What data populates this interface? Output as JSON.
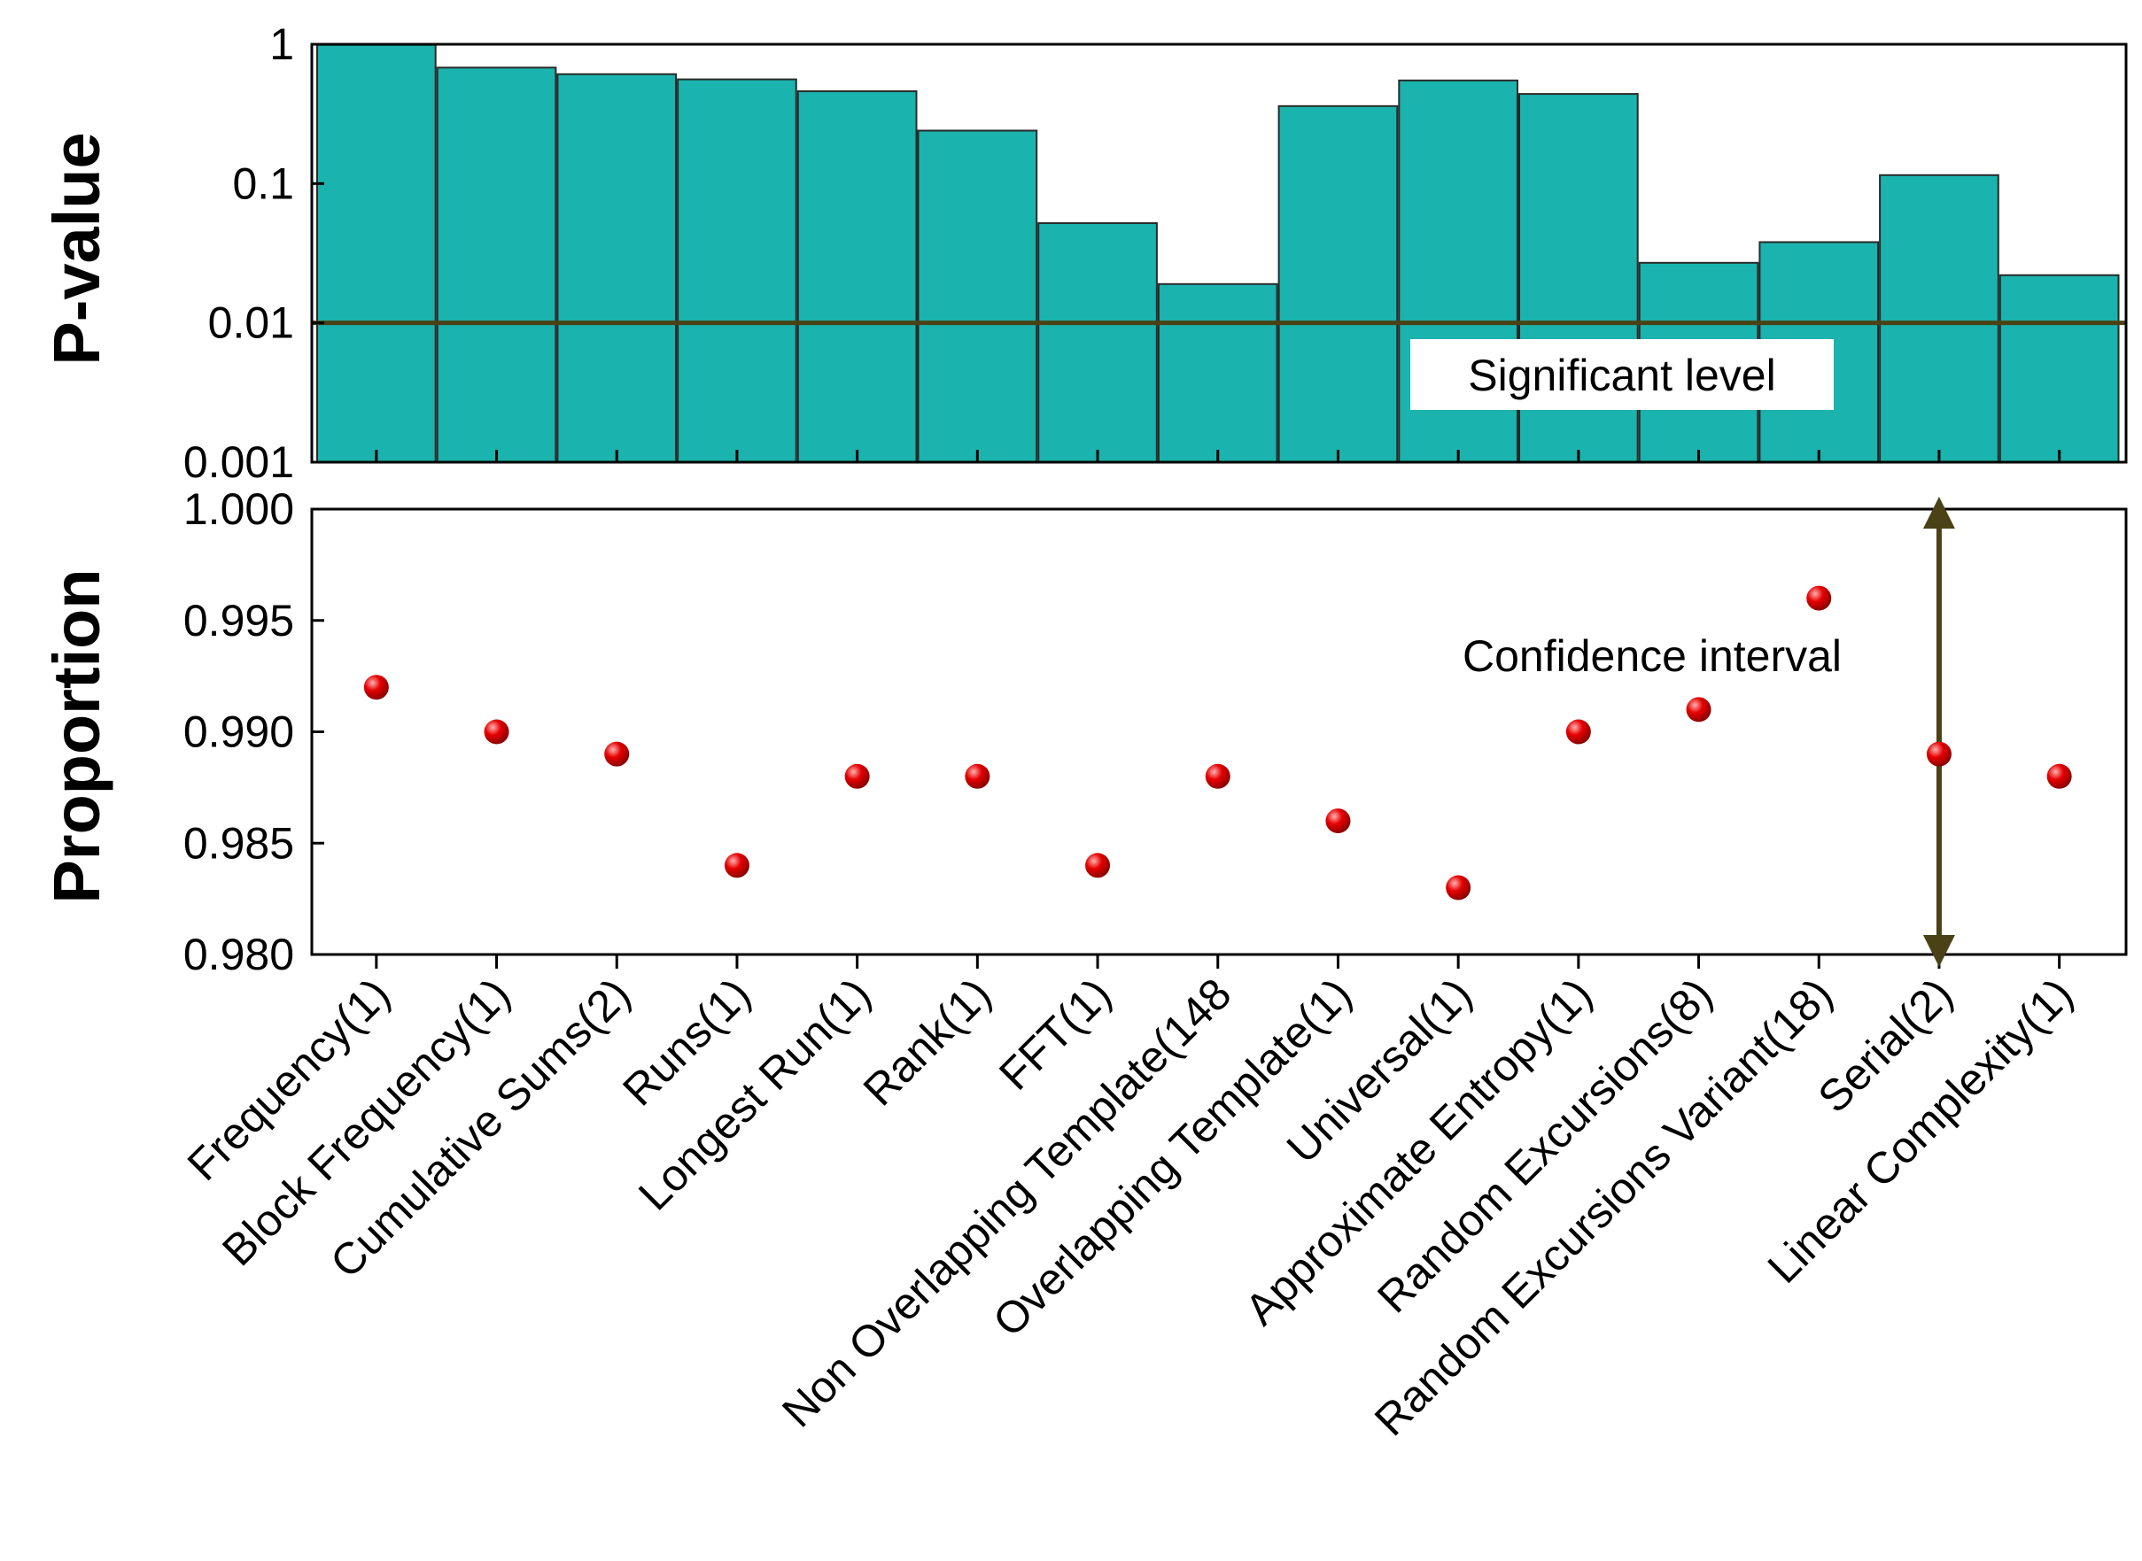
{
  "colors": {
    "bar_fill": "#1ab3ad",
    "line": "#4a4216",
    "dot": "#e60000",
    "dot_highlight": "#ffb3b3"
  },
  "chart_data": [
    {
      "type": "bar",
      "title": "",
      "ylabel": "P-value",
      "yscale": "log",
      "ylim": [
        0.001,
        1
      ],
      "yticks": [
        0.001,
        0.01,
        0.1,
        1
      ],
      "ytick_labels": [
        "0.001",
        "0.01",
        "0.1",
        "1"
      ],
      "categories": [
        "Frequency(1)",
        "Block Frequency(1)",
        "Cumulative Sums(2)",
        "Runs(1)",
        "Longest Run(1)",
        "Rank(1)",
        "FFT(1)",
        "Non Overlapping Template(148)",
        "Overlapping Template(1)",
        "Universal(1)",
        "Approximate Entropy(1)",
        "Random Excursions(8)",
        "Random Excursions Variant(18)",
        "Serial(2)",
        "Linear Complexity(1)"
      ],
      "values": [
        0.99,
        0.68,
        0.61,
        0.56,
        0.46,
        0.24,
        0.052,
        0.019,
        0.36,
        0.55,
        0.44,
        0.027,
        0.038,
        0.115,
        0.022
      ],
      "reference_line": {
        "value": 0.01,
        "label": "Significant level"
      }
    },
    {
      "type": "scatter",
      "title": "",
      "ylabel": "Proportion",
      "ylim": [
        0.98,
        1.0
      ],
      "yticks": [
        0.98,
        0.985,
        0.99,
        0.995,
        1.0
      ],
      "ytick_labels": [
        "0.980",
        "0.985",
        "0.990",
        "0.995",
        "1.000"
      ],
      "categories": [
        "Frequency(1)",
        "Block Frequency(1)",
        "Cumulative Sums(2)",
        "Runs(1)",
        "Longest Run(1)",
        "Rank(1)",
        "FFT(1)",
        "Non Overlapping Template(148",
        "Overlapping Template(1)",
        "Universal(1)",
        "Approximate Entropy(1)",
        "Random Excursions(8)",
        "Random Excursions Variant(18)",
        "Serial(2)",
        "Linear Complexity(1)"
      ],
      "values": [
        0.992,
        0.99,
        0.989,
        0.984,
        0.988,
        0.988,
        0.984,
        0.988,
        0.986,
        0.983,
        0.99,
        0.991,
        0.996,
        0.989,
        0.988
      ],
      "interval": {
        "category_index": 13,
        "range": [
          0.98,
          1.0
        ],
        "label": "Confidence interval"
      }
    }
  ]
}
